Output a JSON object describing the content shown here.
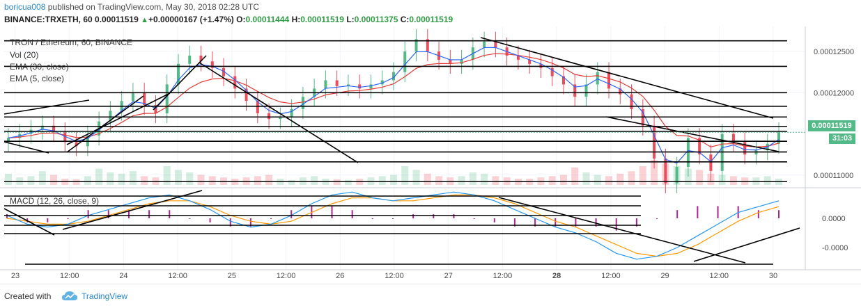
{
  "header": {
    "user": "boricua008",
    "published_text": " published on TradingView.com, May 30, 2018 02:28 UTC"
  },
  "quote": {
    "symbol": "BINANCE:TRXETH, 60",
    "last": "0.00011519",
    "arrow_icon": "up-triangle-icon",
    "change": "+0.00000167 (+1.47%)",
    "o_label": "O:",
    "o": "0.00011444",
    "h_label": "H:",
    "h": "0.00011519",
    "l_label": "L:",
    "l": "0.00011375",
    "c_label": "C:",
    "c": "0.00011519"
  },
  "legends": {
    "main": "TRON / Ethereum, 60, BINANCE",
    "vol": "Vol (20)",
    "ema30": "EMA (30, close)",
    "ema5": "EMA (5, close)",
    "macd": "MACD (12, 26, close, 9)"
  },
  "tags": {
    "price": "0.00011519",
    "countdown": "31:03"
  },
  "footer": {
    "created": "Created with",
    "brand": "TradingView"
  },
  "colors": {
    "up": "#53b987",
    "down": "#eb4d5c",
    "ema_fast": "#2962ff",
    "ema_slow": "#e53935",
    "macd_line": "#2196f3",
    "signal_line": "#ff9800",
    "histogram": "#b0248f",
    "trendline": "#000000"
  },
  "chart_data": {
    "type": "candlestick",
    "symbol": "TRXETH",
    "interval": "60",
    "price_axis_ticks": [
      "0.00012500",
      "0.00012000",
      "0.00011519",
      "0.00011000"
    ],
    "macd_axis_ticks": [
      "0.0000",
      "-0.0000"
    ],
    "time_axis_ticks": [
      "23",
      "12:00",
      "24",
      "12:00",
      "25",
      "12:00",
      "26",
      "12:00",
      "27",
      "12:00",
      "28",
      "12:00",
      "29",
      "12:00",
      "30"
    ],
    "price_ylim": [
      0.0001088,
      0.0001272
    ],
    "close_series_approx": [
      0.0001145,
      0.000115,
      0.0001155,
      0.000116,
      0.0001152,
      0.000114,
      0.0001135,
      0.0001148,
      0.0001165,
      0.0001178,
      0.000119,
      0.00012,
      0.0001185,
      0.0001175,
      0.000121,
      0.0001235,
      0.0001245,
      0.0001238,
      0.000123,
      0.000122,
      0.0001205,
      0.000119,
      0.0001175,
      0.0001168,
      0.000117,
      0.000118,
      0.0001195,
      0.0001205,
      0.0001215,
      0.0001208,
      0.000121,
      0.0001205,
      0.000121,
      0.0001215,
      0.0001225,
      0.000125,
      0.0001265,
      0.000125,
      0.000124,
      0.0001235,
      0.000124,
      0.0001255,
      0.0001262,
      0.0001255,
      0.0001245,
      0.000124,
      0.0001235,
      0.000123,
      0.000122,
      0.000121,
      0.0001195,
      0.000121,
      0.0001225,
      0.0001205,
      0.0001198,
      0.000118,
      0.000116,
      0.000112,
      0.000109,
      0.000111,
      0.0001145,
      0.0001125,
      0.0001105,
      0.000115,
      0.000114,
      0.0001125,
      0.000113,
      0.0001138,
      0.0001152
    ],
    "volume_series_approx": [
      18,
      12,
      14,
      22,
      16,
      10,
      9,
      14,
      26,
      20,
      18,
      22,
      14,
      12,
      30,
      24,
      20,
      16,
      14,
      12,
      10,
      12,
      14,
      16,
      10,
      8,
      12,
      14,
      10,
      9,
      8,
      10,
      12,
      14,
      16,
      30,
      24,
      18,
      14,
      12,
      14,
      20,
      18,
      14,
      12,
      10,
      10,
      12,
      14,
      16,
      28,
      20,
      16,
      14,
      18,
      22,
      30,
      40,
      34,
      30,
      26,
      24,
      18,
      16,
      14,
      12,
      12,
      14,
      10
    ],
    "macd_series_approx": [
      0.1,
      -0.2,
      -0.3,
      -0.2,
      0.1,
      0.3,
      0.5,
      0.7,
      0.8,
      0.6,
      0.3,
      -0.1,
      -0.3,
      -0.2,
      0.1,
      0.5,
      0.8,
      0.9,
      0.7,
      0.6,
      0.7,
      0.8,
      0.9,
      0.8,
      0.6,
      0.3,
      0.0,
      -0.3,
      -0.5,
      -0.8,
      -1.2,
      -1.4,
      -1.3,
      -1.0,
      -0.6,
      -0.2,
      0.2,
      0.4,
      0.6
    ],
    "signal_series_approx": [
      0.0,
      -0.1,
      -0.2,
      -0.2,
      -0.1,
      0.1,
      0.3,
      0.5,
      0.6,
      0.6,
      0.4,
      0.1,
      -0.1,
      -0.2,
      -0.1,
      0.2,
      0.5,
      0.7,
      0.7,
      0.6,
      0.6,
      0.7,
      0.8,
      0.8,
      0.7,
      0.5,
      0.2,
      -0.1,
      -0.3,
      -0.6,
      -0.9,
      -1.2,
      -1.3,
      -1.2,
      -0.9,
      -0.5,
      -0.1,
      0.2,
      0.4
    ],
    "horizontal_levels": [
      0.0001263,
      0.0001232,
      0.00012,
      0.00011835,
      0.00011705,
      0.0001159,
      0.0001153,
      0.0001141,
      0.0001128,
      0.0001116,
      0.0001092
    ],
    "grid": true,
    "legend_position": "top-left"
  }
}
